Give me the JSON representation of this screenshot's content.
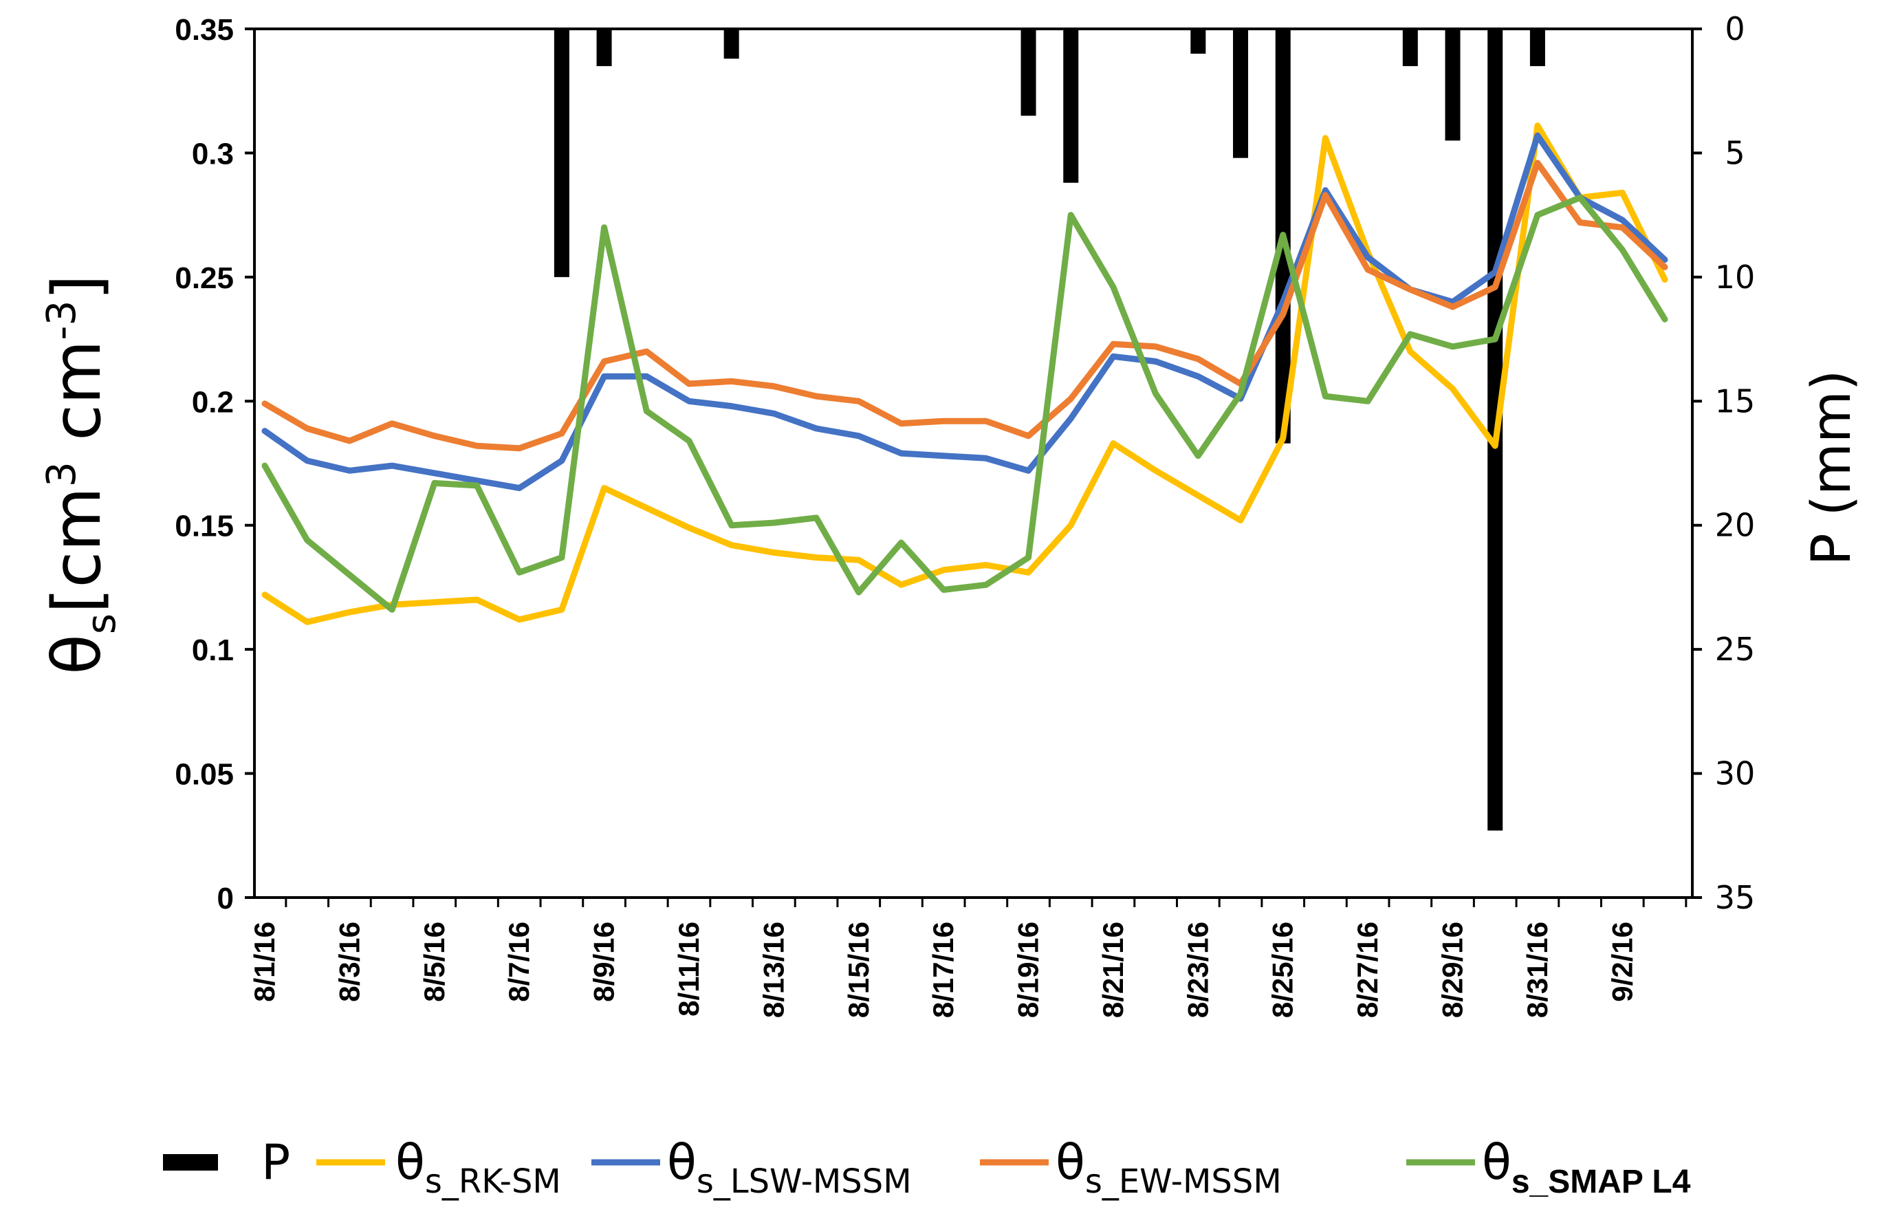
{
  "chart_data": {
    "type": "line",
    "title": "",
    "xlabel": "",
    "ylabel_left": {
      "symbol": "θ",
      "sub": "s",
      "unit_open": "[cm",
      "sup1": "3",
      "unit_mid": " cm",
      "sup2": "-3",
      "unit_close": "]"
    },
    "ylabel_right": "P (mm)",
    "ylim_left": [
      0,
      0.35
    ],
    "ylim_right": [
      0,
      35
    ],
    "y2_inverted": true,
    "yticks_left": [
      "0",
      "0.05",
      "0.1",
      "0.15",
      "0.2",
      "0.25",
      "0.3",
      "0.35"
    ],
    "yticks_right": [
      "0",
      "5",
      "10",
      "15",
      "20",
      "25",
      "30",
      "35"
    ],
    "x": [
      "8/1/16",
      "8/2/16",
      "8/3/16",
      "8/4/16",
      "8/5/16",
      "8/6/16",
      "8/7/16",
      "8/8/16",
      "8/9/16",
      "8/10/16",
      "8/11/16",
      "8/12/16",
      "8/13/16",
      "8/14/16",
      "8/15/16",
      "8/16/16",
      "8/17/16",
      "8/18/16",
      "8/19/16",
      "8/20/16",
      "8/21/16",
      "8/22/16",
      "8/23/16",
      "8/24/16",
      "8/25/16",
      "8/26/16",
      "8/27/16",
      "8/28/16",
      "8/29/16",
      "8/30/16",
      "8/31/16",
      "9/1/16",
      "9/2/16",
      "9/3/16"
    ],
    "xtick_labels": [
      "8/1/16",
      "8/3/16",
      "8/5/16",
      "8/7/16",
      "8/9/16",
      "8/11/16",
      "8/13/16",
      "8/15/16",
      "8/17/16",
      "8/19/16",
      "8/21/16",
      "8/23/16",
      "8/25/16",
      "8/27/16",
      "8/29/16",
      "8/31/16",
      "9/2/16"
    ],
    "precipitation": {
      "name": "P",
      "color": "#000000",
      "bars": [
        {
          "x": "8/8/16",
          "value": 10
        },
        {
          "x": "8/9/16",
          "value": 1.5
        },
        {
          "x": "8/12/16",
          "value": 1.2
        },
        {
          "x": "8/19/16",
          "value": 3.5
        },
        {
          "x": "8/20/16",
          "value": 6.2
        },
        {
          "x": "8/23/16",
          "value": 1
        },
        {
          "x": "8/24/16",
          "value": 5.2
        },
        {
          "x": "8/25/16",
          "value": 16.7
        },
        {
          "x": "8/28/16",
          "value": 1.5
        },
        {
          "x": "8/29/16",
          "value": 4.5
        },
        {
          "x": "8/30/16",
          "value": 32.3
        },
        {
          "x": "8/31/16",
          "value": 1.5
        }
      ]
    },
    "series": [
      {
        "name": "RK-SM",
        "color": "#FFC000",
        "values": [
          0.122,
          0.111,
          0.115,
          0.118,
          0.119,
          0.12,
          0.112,
          0.116,
          0.165,
          0.157,
          0.149,
          0.142,
          0.139,
          0.137,
          0.136,
          0.126,
          0.132,
          0.134,
          0.131,
          0.15,
          0.183,
          0.172,
          0.162,
          0.152,
          0.185,
          0.306,
          0.26,
          0.22,
          0.205,
          0.182,
          0.311,
          0.282,
          0.284,
          0.249
        ]
      },
      {
        "name": "LSW-MSSM",
        "color": "#4472C4",
        "values": [
          0.188,
          0.176,
          0.172,
          0.174,
          0.171,
          0.168,
          0.165,
          0.176,
          0.21,
          0.21,
          0.2,
          0.198,
          0.195,
          0.189,
          0.186,
          0.179,
          0.178,
          0.177,
          0.172,
          0.193,
          0.218,
          0.216,
          0.21,
          0.201,
          0.24,
          0.285,
          0.258,
          0.245,
          0.24,
          0.252,
          0.307,
          0.282,
          0.273,
          0.257
        ]
      },
      {
        "name": "EW-MSSM",
        "color": "#ED7D31",
        "values": [
          0.199,
          0.189,
          0.184,
          0.191,
          0.186,
          0.182,
          0.181,
          0.187,
          0.216,
          0.22,
          0.207,
          0.208,
          0.206,
          0.202,
          0.2,
          0.191,
          0.192,
          0.192,
          0.186,
          0.201,
          0.223,
          0.222,
          0.217,
          0.207,
          0.235,
          0.283,
          0.253,
          0.245,
          0.238,
          0.246,
          0.296,
          0.272,
          0.27,
          0.254
        ]
      },
      {
        "name": "SMAP L4",
        "color": "#70AD47",
        "values": [
          0.174,
          0.144,
          0.13,
          0.116,
          0.167,
          0.166,
          0.131,
          0.137,
          0.27,
          0.196,
          0.184,
          0.15,
          0.151,
          0.153,
          0.123,
          0.143,
          0.124,
          0.126,
          0.137,
          0.275,
          0.246,
          0.203,
          0.178,
          0.203,
          0.267,
          0.202,
          0.2,
          0.227,
          0.222,
          0.225,
          0.275,
          0.282,
          0.261,
          0.233
        ]
      }
    ],
    "legend": [
      {
        "kind": "bar",
        "label": "P",
        "color": "#000000"
      },
      {
        "kind": "line",
        "symbol": "θ",
        "sub": "s_RK-SM",
        "bold": false,
        "color": "#FFC000"
      },
      {
        "kind": "line",
        "symbol": "θ",
        "sub": "s_LSW-MSSM",
        "bold": false,
        "color": "#4472C4"
      },
      {
        "kind": "line",
        "symbol": "θ",
        "sub": "s_EW-MSSM",
        "bold": false,
        "color": "#ED7D31"
      },
      {
        "kind": "line",
        "symbol": "θ",
        "sub": "s_SMAP L4",
        "bold": true,
        "color": "#70AD47"
      }
    ],
    "legend_position": "bottom"
  }
}
